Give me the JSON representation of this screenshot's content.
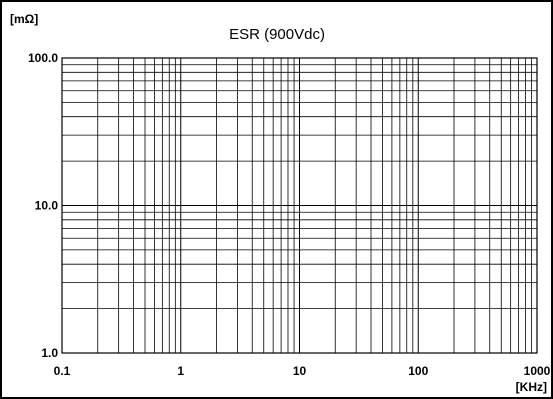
{
  "chart_data": {
    "type": "line",
    "title": "ESR (900Vdc)",
    "x_unit": "[KHz]",
    "y_unit": "[mΩ]",
    "x_scale": "log",
    "y_scale": "log",
    "xlim": [
      0.1,
      1000
    ],
    "ylim": [
      1.0,
      100.0
    ],
    "x_ticks": [
      "0.1",
      "1",
      "10",
      "100",
      "1000"
    ],
    "y_ticks": [
      "1.0",
      "10.0",
      "100.0"
    ],
    "x_tick_values": [
      0.1,
      1,
      10,
      100,
      1000
    ],
    "y_tick_values": [
      1,
      10,
      100
    ],
    "grid": true,
    "series": []
  }
}
